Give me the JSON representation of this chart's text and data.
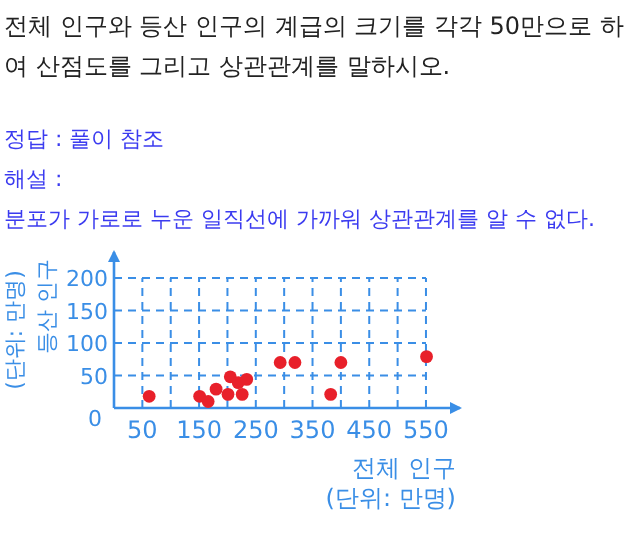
{
  "chart_data": {
    "type": "scatter",
    "title": "전체 인구와 등산 인구의 계급의 크기를 각각 50만으로 하여 산점도를 그리고 상관관계를 말하시오.",
    "annotations": [
      "정답 : 풀이 참조",
      "해설 :",
      "분포가 가로로 누운 일직선에 가까워 상관관계를 알 수 없다."
    ],
    "xlabel": "전체 인구 (단위: 만명)",
    "ylabel": "등산 인구 (단위: 만명)",
    "x": [
      62,
      151,
      166,
      180,
      201,
      205,
      219,
      226,
      234,
      293,
      319,
      382,
      400,
      551
    ],
    "values": [
      18,
      18,
      10,
      29,
      21,
      48,
      39,
      21,
      44,
      70,
      70,
      21,
      70,
      79
    ],
    "color": "#e8202a",
    "marker": "circle",
    "grid": true,
    "xlim": [
      0,
      610
    ],
    "ylim": [
      0,
      240
    ],
    "xticks": [
      50,
      {
        "value": 100,
        "label": null
      },
      150,
      {
        "value": 200,
        "label": null
      },
      250,
      {
        "value": 300,
        "label": null
      },
      350,
      {
        "value": 400,
        "label": null
      },
      450,
      {
        "value": 500,
        "label": null
      },
      550
    ],
    "yticks": [
      0,
      50,
      100,
      150,
      200
    ]
  }
}
